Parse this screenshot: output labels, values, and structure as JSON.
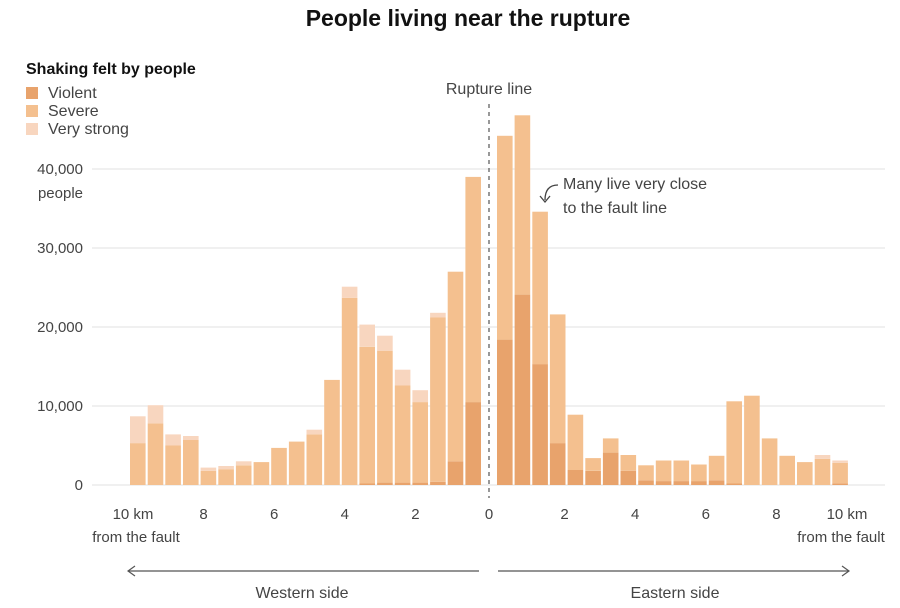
{
  "chart_data": {
    "type": "bar",
    "stacked": true,
    "title": "People living near the rupture",
    "legend_title": "Shaking felt by people",
    "legend_position": "top-left",
    "series": [
      {
        "name": "Violent",
        "color": "#e8a36c"
      },
      {
        "name": "Severe",
        "color": "#f4c08f"
      },
      {
        "name": "Very strong",
        "color": "#f8d6bf"
      }
    ],
    "ylim": [
      0,
      47000
    ],
    "y_ticks": [
      {
        "value": 0,
        "label": "0"
      },
      {
        "value": 10000,
        "label": "10,000"
      },
      {
        "value": 20000,
        "label": "20,000"
      },
      {
        "value": 30000,
        "label": "30,000"
      },
      {
        "value": 40000,
        "label": "40,000"
      }
    ],
    "y_unit_label": "people",
    "x_range_km": [
      -10.5,
      10.5
    ],
    "x_ticks": [
      {
        "value": -10,
        "label": "10 km"
      },
      {
        "value": -8,
        "label": "8"
      },
      {
        "value": -6,
        "label": "6"
      },
      {
        "value": -4,
        "label": "4"
      },
      {
        "value": -2,
        "label": "2"
      },
      {
        "value": 0,
        "label": "0"
      },
      {
        "value": 2,
        "label": "2"
      },
      {
        "value": 4,
        "label": "4"
      },
      {
        "value": 6,
        "label": "6"
      },
      {
        "value": 8,
        "label": "8"
      },
      {
        "value": 10,
        "label": "10 km"
      }
    ],
    "x_sub_label_left": "from the fault",
    "x_sub_label_right": "from the fault",
    "rupture_label": "Rupture line",
    "annotation": [
      "Many live very close",
      "to the fault line"
    ],
    "west_label": "Western side",
    "east_label": "Eastern side",
    "bin_width_km": 0.5,
    "western_bars": [
      {
        "center_km": -0.25,
        "violent": 10500,
        "severe": 28500,
        "very_strong": 0
      },
      {
        "center_km": -0.75,
        "violent": 3000,
        "severe": 24000,
        "very_strong": 0
      },
      {
        "center_km": -1.25,
        "violent": 400,
        "severe": 20800,
        "very_strong": 600
      },
      {
        "center_km": -1.75,
        "violent": 300,
        "severe": 10200,
        "very_strong": 1500
      },
      {
        "center_km": -2.25,
        "violent": 300,
        "severe": 12300,
        "very_strong": 2000
      },
      {
        "center_km": -2.75,
        "violent": 300,
        "severe": 16700,
        "very_strong": 1900
      },
      {
        "center_km": -3.25,
        "violent": 200,
        "severe": 17300,
        "very_strong": 2800
      },
      {
        "center_km": -3.75,
        "violent": 0,
        "severe": 23700,
        "very_strong": 1400
      },
      {
        "center_km": -4.25,
        "violent": 0,
        "severe": 13300,
        "very_strong": 0
      },
      {
        "center_km": -4.75,
        "violent": 0,
        "severe": 6400,
        "very_strong": 600
      },
      {
        "center_km": -5.25,
        "violent": 0,
        "severe": 5500,
        "very_strong": 0
      },
      {
        "center_km": -5.75,
        "violent": 0,
        "severe": 4700,
        "very_strong": 0
      },
      {
        "center_km": -6.25,
        "violent": 0,
        "severe": 2900,
        "very_strong": 0
      },
      {
        "center_km": -6.75,
        "violent": 0,
        "severe": 2500,
        "very_strong": 500
      },
      {
        "center_km": -7.25,
        "violent": 0,
        "severe": 2000,
        "very_strong": 400
      },
      {
        "center_km": -7.75,
        "violent": 0,
        "severe": 1800,
        "very_strong": 400
      },
      {
        "center_km": -8.25,
        "violent": 0,
        "severe": 5700,
        "very_strong": 500
      },
      {
        "center_km": -8.75,
        "violent": 0,
        "severe": 5000,
        "very_strong": 1400
      },
      {
        "center_km": -9.25,
        "violent": 0,
        "severe": 7800,
        "very_strong": 2300
      },
      {
        "center_km": -9.75,
        "violent": 0,
        "severe": 5300,
        "very_strong": 3400
      }
    ],
    "eastern_bars": [
      {
        "center_km": 0.25,
        "violent": 18400,
        "severe": 25800,
        "very_strong": 0
      },
      {
        "center_km": 0.75,
        "violent": 24100,
        "severe": 22700,
        "very_strong": 0
      },
      {
        "center_km": 1.25,
        "violent": 15300,
        "severe": 19300,
        "very_strong": 0
      },
      {
        "center_km": 1.75,
        "violent": 5300,
        "severe": 16300,
        "very_strong": 0
      },
      {
        "center_km": 2.25,
        "violent": 1900,
        "severe": 7000,
        "very_strong": 0
      },
      {
        "center_km": 2.75,
        "violent": 1800,
        "severe": 1600,
        "very_strong": 0
      },
      {
        "center_km": 3.25,
        "violent": 4100,
        "severe": 1800,
        "very_strong": 0
      },
      {
        "center_km": 3.75,
        "violent": 1800,
        "severe": 2000,
        "very_strong": 0
      },
      {
        "center_km": 4.25,
        "violent": 600,
        "severe": 1900,
        "very_strong": 0
      },
      {
        "center_km": 4.75,
        "violent": 500,
        "severe": 2600,
        "very_strong": 0
      },
      {
        "center_km": 5.25,
        "violent": 500,
        "severe": 2600,
        "very_strong": 0
      },
      {
        "center_km": 5.75,
        "violent": 500,
        "severe": 2100,
        "very_strong": 0
      },
      {
        "center_km": 6.25,
        "violent": 600,
        "severe": 3100,
        "very_strong": 0
      },
      {
        "center_km": 6.75,
        "violent": 200,
        "severe": 10400,
        "very_strong": 0
      },
      {
        "center_km": 7.25,
        "violent": 0,
        "severe": 11300,
        "very_strong": 0
      },
      {
        "center_km": 7.75,
        "violent": 0,
        "severe": 5900,
        "very_strong": 0
      },
      {
        "center_km": 8.25,
        "violent": 0,
        "severe": 3700,
        "very_strong": 0
      },
      {
        "center_km": 8.75,
        "violent": 0,
        "severe": 2900,
        "very_strong": 0
      },
      {
        "center_km": 9.25,
        "violent": 0,
        "severe": 3300,
        "very_strong": 500
      },
      {
        "center_km": 9.75,
        "violent": 200,
        "severe": 2600,
        "very_strong": 300
      }
    ]
  }
}
